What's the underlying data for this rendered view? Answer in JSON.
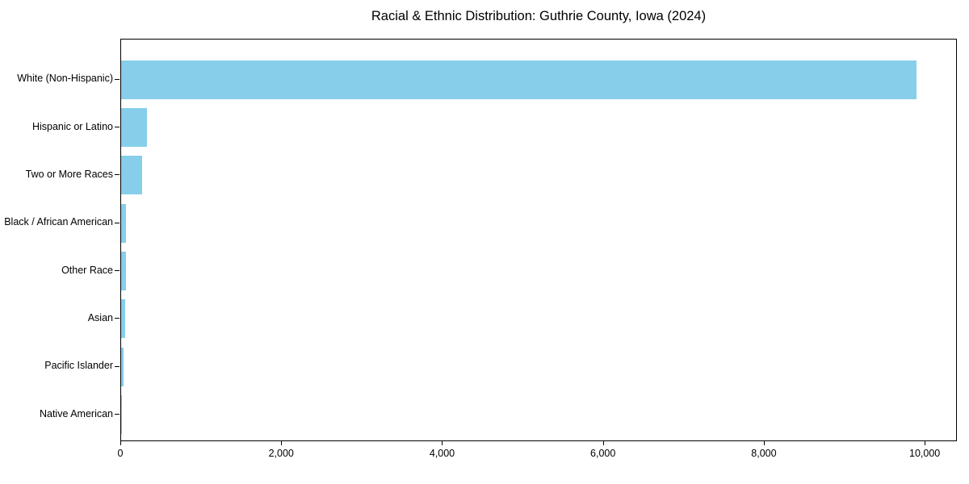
{
  "chart_data": {
    "type": "bar",
    "orientation": "horizontal",
    "title": "Racial & Ethnic Distribution: Guthrie County, Iowa (2024)",
    "xlabel": "",
    "ylabel": "",
    "categories": [
      "White (Non-Hispanic)",
      "Hispanic or Latino",
      "Two or More Races",
      "Black / African American",
      "Other Race",
      "Asian",
      "Pacific Islander",
      "Native American"
    ],
    "values": [
      9890,
      325,
      265,
      62,
      58,
      52,
      27,
      8
    ],
    "bar_color": "#87CEEB",
    "xlim": [
      0,
      10380
    ],
    "xticks": [
      {
        "value": 0,
        "label": "0"
      },
      {
        "value": 2000,
        "label": "2,000"
      },
      {
        "value": 4000,
        "label": "4,000"
      },
      {
        "value": 6000,
        "label": "6,000"
      },
      {
        "value": 8000,
        "label": "8,000"
      },
      {
        "value": 10000,
        "label": "10,000"
      }
    ],
    "grid": false,
    "legend": "none"
  }
}
